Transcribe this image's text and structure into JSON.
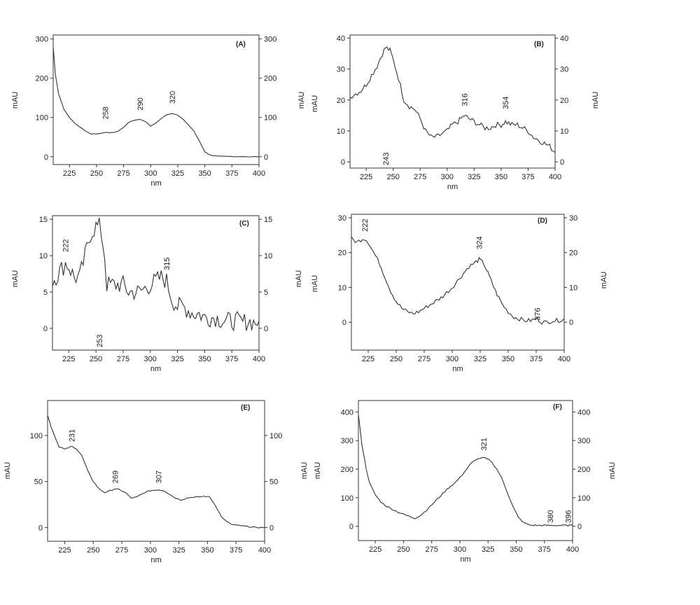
{
  "chart_data": [
    {
      "type": "line",
      "panel_label": "(A)",
      "xlabel": "nm",
      "ylabel_left": "mAU",
      "ylabel_right": "mAU",
      "xlim": [
        210,
        400
      ],
      "ylim": [
        -20,
        310
      ],
      "xticks": [
        225,
        250,
        275,
        300,
        325,
        350,
        375,
        400
      ],
      "yticks": [
        0,
        100,
        200,
        300
      ],
      "peak_labels": [
        "258",
        "290",
        "320"
      ],
      "series": [
        {
          "x": [
            210,
            212,
            215,
            220,
            225,
            230,
            235,
            240,
            245,
            250,
            255,
            258,
            262,
            266,
            270,
            275,
            280,
            285,
            290,
            295,
            300,
            305,
            310,
            315,
            320,
            325,
            330,
            335,
            340,
            345,
            350,
            355,
            360,
            370,
            380,
            390,
            400
          ],
          "y": [
            280,
            210,
            160,
            120,
            100,
            85,
            75,
            65,
            58,
            58,
            60,
            62,
            61,
            62,
            65,
            75,
            88,
            93,
            95,
            90,
            78,
            86,
            98,
            107,
            110,
            106,
            95,
            80,
            65,
            40,
            12,
            4,
            2,
            1,
            0,
            0,
            0
          ]
        }
      ]
    },
    {
      "type": "line",
      "panel_label": "(B)",
      "xlabel": "nm",
      "ylabel_left": "mAU",
      "ylabel_right": "mAU",
      "xlim": [
        210,
        400
      ],
      "ylim": [
        -2,
        41
      ],
      "xticks": [
        225,
        250,
        275,
        300,
        325,
        350,
        375,
        400
      ],
      "yticks": [
        0,
        10,
        20,
        30,
        40
      ],
      "peak_labels": [
        "243",
        "316",
        "354"
      ],
      "series": [
        {
          "x": [
            210,
            215,
            220,
            225,
            230,
            235,
            240,
            243,
            247,
            250,
            255,
            260,
            265,
            270,
            275,
            280,
            285,
            290,
            295,
            300,
            305,
            310,
            316,
            320,
            325,
            330,
            335,
            340,
            345,
            350,
            354,
            360,
            365,
            370,
            375,
            380,
            385,
            390,
            395,
            400
          ],
          "y": [
            21,
            22,
            23,
            25,
            28,
            31,
            35,
            37,
            36,
            33,
            27,
            20,
            18,
            17,
            14,
            10,
            8,
            8,
            9,
            10,
            12,
            13,
            15,
            14,
            13,
            12,
            11,
            11,
            12,
            12,
            13,
            12,
            12,
            11,
            10,
            8,
            7,
            6,
            5,
            3
          ]
        }
      ]
    },
    {
      "type": "line",
      "panel_label": "(C)",
      "xlabel": "nm",
      "ylabel_left": "mAU",
      "ylabel_right": "mAU",
      "xlim": [
        210,
        400
      ],
      "ylim": [
        -3,
        15.5
      ],
      "xticks": [
        225,
        250,
        275,
        300,
        325,
        350,
        375,
        400
      ],
      "yticks": [
        0,
        5,
        10,
        15
      ],
      "peak_labels": [
        "222",
        "253",
        "315"
      ],
      "series": [
        {
          "x": [
            210,
            215,
            220,
            222,
            225,
            230,
            235,
            240,
            245,
            250,
            253,
            255,
            258,
            260,
            265,
            270,
            275,
            280,
            285,
            290,
            295,
            300,
            305,
            310,
            315,
            320,
            325,
            330,
            335,
            340,
            345,
            350,
            355,
            360,
            365,
            370,
            375,
            380,
            385,
            390,
            395,
            400
          ],
          "y": [
            6.5,
            7.5,
            8.5,
            9,
            8.5,
            7,
            7,
            10,
            13,
            14,
            14,
            13,
            10,
            6,
            6,
            6,
            6,
            5,
            5,
            5,
            5.5,
            6,
            6.5,
            7,
            6.5,
            4,
            3,
            3,
            2.5,
            2,
            2,
            1.5,
            1.5,
            1.5,
            1.2,
            1,
            1,
            1,
            0.8,
            1,
            0.8,
            1
          ]
        }
      ]
    },
    {
      "type": "line",
      "panel_label": "(D)",
      "xlabel": "nm",
      "ylabel_left": "mAU",
      "ylabel_right": "mAU",
      "xlim": [
        210,
        400
      ],
      "ylim": [
        -8,
        31
      ],
      "xticks": [
        225,
        250,
        275,
        300,
        325,
        350,
        375,
        400
      ],
      "yticks": [
        0,
        10,
        20,
        30
      ],
      "peak_labels": [
        "222",
        "324",
        "376"
      ],
      "series": [
        {
          "x": [
            210,
            215,
            220,
            222,
            225,
            230,
            235,
            240,
            245,
            250,
            255,
            260,
            265,
            270,
            275,
            280,
            285,
            290,
            295,
            300,
            305,
            310,
            315,
            320,
            324,
            328,
            332,
            336,
            340,
            345,
            350,
            355,
            360,
            365,
            370,
            376,
            380,
            385,
            390,
            395,
            400
          ],
          "y": [
            24,
            23,
            24,
            24,
            23,
            20,
            17,
            13,
            9,
            6,
            4,
            3,
            2.5,
            3,
            4,
            5,
            6,
            7,
            8.5,
            10,
            12,
            14,
            16,
            17,
            18,
            17,
            14,
            11,
            8,
            5,
            3,
            1.5,
            1,
            0.5,
            0.5,
            1,
            0,
            0,
            0.5,
            0.5,
            1
          ]
        }
      ]
    },
    {
      "type": "line",
      "panel_label": "(E)",
      "xlabel": "nm",
      "ylabel_left": "mAU",
      "ylabel_right": "mAU",
      "xlim": [
        210,
        400
      ],
      "ylim": [
        -15,
        138
      ],
      "xticks": [
        225,
        250,
        275,
        300,
        325,
        350,
        375,
        400
      ],
      "yticks": [
        0,
        50,
        100
      ],
      "peak_labels": [
        "231",
        "269",
        "307"
      ],
      "series": [
        {
          "x": [
            210,
            213,
            216,
            220,
            225,
            231,
            235,
            240,
            245,
            250,
            255,
            260,
            265,
            269,
            273,
            278,
            283,
            288,
            295,
            300,
            307,
            312,
            317,
            322,
            327,
            332,
            337,
            342,
            347,
            352,
            357,
            362,
            367,
            372,
            378,
            385,
            392,
            400
          ],
          "y": [
            122,
            110,
            100,
            88,
            85,
            88,
            86,
            78,
            62,
            50,
            42,
            38,
            40,
            42,
            41,
            38,
            32,
            33,
            38,
            40,
            41,
            40,
            36,
            32,
            30,
            32,
            33,
            33,
            34,
            33,
            24,
            12,
            6,
            3,
            2,
            1,
            0,
            0
          ]
        }
      ]
    },
    {
      "type": "line",
      "panel_label": "(F)",
      "xlabel": "nm",
      "ylabel_left": "mAU",
      "ylabel_right": "mAU",
      "xlim": [
        210,
        400
      ],
      "ylim": [
        -50,
        440
      ],
      "xticks": [
        225,
        250,
        275,
        300,
        325,
        350,
        375,
        400
      ],
      "yticks": [
        0,
        100,
        200,
        300,
        400
      ],
      "peak_labels": [
        "321",
        "380",
        "396"
      ],
      "series": [
        {
          "x": [
            210,
            213,
            217,
            220,
            225,
            230,
            235,
            240,
            245,
            250,
            255,
            260,
            265,
            270,
            275,
            280,
            285,
            290,
            295,
            300,
            305,
            310,
            315,
            321,
            327,
            332,
            337,
            342,
            347,
            352,
            357,
            362,
            370,
            380,
            390,
            400
          ],
          "y": [
            390,
            290,
            200,
            150,
            110,
            85,
            70,
            60,
            50,
            42,
            35,
            28,
            38,
            55,
            75,
            95,
            115,
            135,
            150,
            170,
            195,
            220,
            235,
            240,
            230,
            205,
            170,
            120,
            70,
            30,
            12,
            4,
            3,
            3,
            3,
            3
          ]
        }
      ]
    }
  ]
}
